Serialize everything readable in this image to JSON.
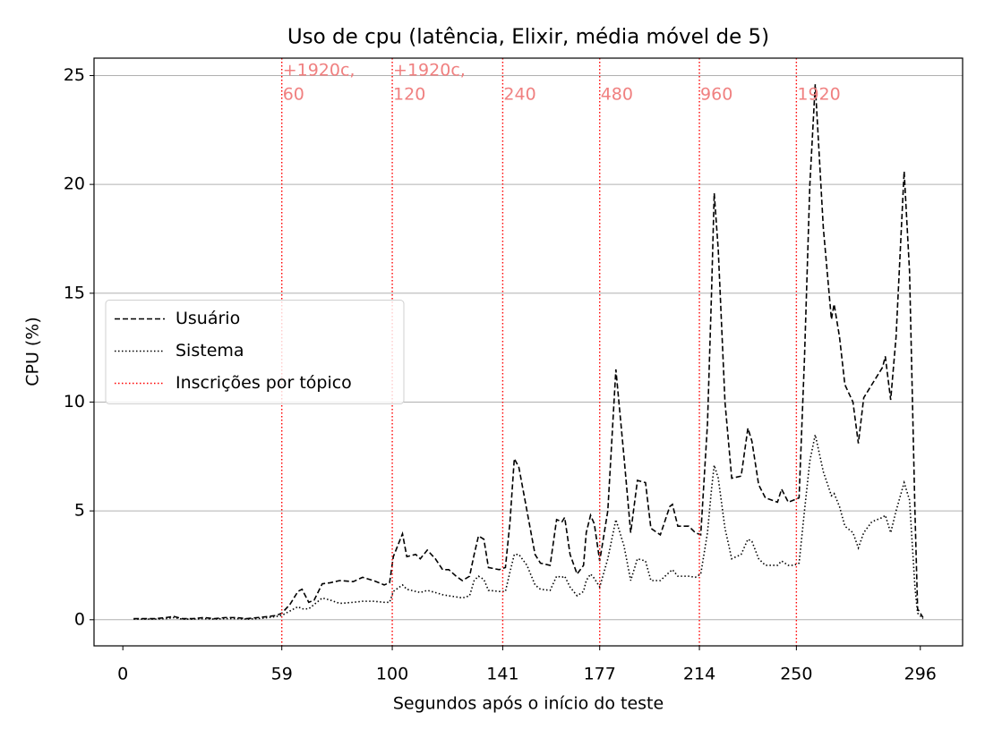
{
  "chart_data": {
    "type": "line",
    "title": "Uso de cpu (latência, Elixir, média móvel de 5)",
    "xlabel": "Segundos após o início do teste",
    "ylabel": "CPU (%)",
    "x": [
      4,
      8,
      12,
      16,
      19,
      22,
      26,
      30,
      34,
      38,
      42,
      46,
      50,
      54,
      57,
      59,
      62,
      65,
      66.5,
      69,
      71,
      74,
      77,
      80.5,
      85.5,
      89,
      93,
      97,
      99,
      100.4,
      103.8,
      105.4,
      108.7,
      110.4,
      113,
      116,
      118.7,
      121,
      123.7,
      126,
      128.7,
      130.4,
      132,
      134,
      135.7,
      139.7,
      142,
      143.7,
      145.3,
      147,
      150,
      153,
      155,
      158.6,
      161,
      163,
      164,
      166,
      168.6,
      171,
      172,
      173.6,
      175,
      177,
      180,
      183,
      186,
      188.5,
      191,
      194,
      196,
      199.5,
      203,
      204,
      206,
      210,
      212.5,
      214.5,
      217,
      218.5,
      219.5,
      221,
      223.5,
      226,
      229.5,
      232,
      233.5,
      236,
      238.5,
      243,
      244.5,
      247,
      249,
      251,
      253,
      255,
      257,
      260,
      263,
      264,
      266,
      268,
      271,
      273,
      275,
      278,
      282,
      283,
      285,
      287,
      290,
      292,
      294,
      295,
      297
    ],
    "series": [
      {
        "name": "Usuário",
        "color": "#000000",
        "linestyle": "dashed",
        "values": [
          0.05,
          0.05,
          0.05,
          0.1,
          0.15,
          0.05,
          0.05,
          0.1,
          0.05,
          0.1,
          0.1,
          0.05,
          0.1,
          0.15,
          0.2,
          0.3,
          0.7,
          1.3,
          1.4,
          0.8,
          0.9,
          1.65,
          1.7,
          1.8,
          1.75,
          1.95,
          1.8,
          1.6,
          1.7,
          2.9,
          3.95,
          2.9,
          3.0,
          2.8,
          3.2,
          2.8,
          2.3,
          2.3,
          2.0,
          1.8,
          2.0,
          3.0,
          3.85,
          3.7,
          2.4,
          2.3,
          2.4,
          4.5,
          7.4,
          7.0,
          5.0,
          3.0,
          2.6,
          2.5,
          4.6,
          4.5,
          4.7,
          3.0,
          2.1,
          2.5,
          4.0,
          4.8,
          4.4,
          2.7,
          5.0,
          11.5,
          7.5,
          4.0,
          6.4,
          6.3,
          4.2,
          3.9,
          5.2,
          5.3,
          4.3,
          4.3,
          4.0,
          3.9,
          9.0,
          15.0,
          19.6,
          17.0,
          10.0,
          6.5,
          6.6,
          8.8,
          8.2,
          6.2,
          5.6,
          5.4,
          6.0,
          5.4,
          5.5,
          5.6,
          12.0,
          20.0,
          24.6,
          18.0,
          13.8,
          14.5,
          13.0,
          10.8,
          10.0,
          8.1,
          10.2,
          10.8,
          11.6,
          12.1,
          10.1,
          13.0,
          20.6,
          16.0,
          5.0,
          0.5,
          0.1
        ]
      },
      {
        "name": "Sistema",
        "color": "#000000",
        "linestyle": "dotted",
        "values": [
          0.03,
          0.03,
          0.03,
          0.05,
          0.1,
          0.03,
          0.03,
          0.05,
          0.03,
          0.05,
          0.05,
          0.03,
          0.05,
          0.1,
          0.15,
          0.2,
          0.4,
          0.6,
          0.5,
          0.5,
          0.7,
          1.0,
          0.9,
          0.75,
          0.8,
          0.85,
          0.85,
          0.8,
          0.8,
          1.3,
          1.6,
          1.4,
          1.3,
          1.25,
          1.35,
          1.25,
          1.15,
          1.1,
          1.05,
          1.0,
          1.1,
          1.8,
          2.0,
          1.85,
          1.35,
          1.3,
          1.3,
          2.2,
          3.0,
          3.0,
          2.5,
          1.6,
          1.4,
          1.35,
          2.0,
          1.95,
          2.0,
          1.5,
          1.1,
          1.3,
          1.8,
          2.1,
          1.9,
          1.5,
          2.8,
          4.6,
          3.4,
          1.8,
          2.8,
          2.7,
          1.8,
          1.8,
          2.2,
          2.3,
          2.0,
          2.0,
          1.95,
          2.1,
          4.0,
          6.0,
          7.1,
          6.5,
          4.2,
          2.8,
          3.0,
          3.7,
          3.6,
          2.8,
          2.5,
          2.5,
          2.7,
          2.5,
          2.5,
          2.6,
          5.0,
          7.3,
          8.5,
          6.8,
          5.7,
          5.8,
          5.2,
          4.3,
          4.0,
          3.3,
          4.0,
          4.5,
          4.7,
          4.8,
          4.0,
          5.0,
          6.3,
          5.5,
          1.5,
          0.3,
          0.05
        ]
      }
    ],
    "vlines": {
      "name": "Inscrições por tópico",
      "color": "#ff0000",
      "label_color": "#f08080",
      "linestyle": "dotted",
      "lines": [
        {
          "x": 59,
          "label": [
            "+1920c,",
            "60"
          ]
        },
        {
          "x": 100,
          "label": [
            "+1920c,",
            "120"
          ]
        },
        {
          "x": 141,
          "label": [
            "240"
          ]
        },
        {
          "x": 177,
          "label": [
            "480"
          ]
        },
        {
          "x": 214,
          "label": [
            "960"
          ]
        },
        {
          "x": 250,
          "label": [
            "1920"
          ]
        }
      ]
    },
    "xlim": [
      -10.7,
      311.7
    ],
    "ylim": [
      -1.2,
      25.8
    ],
    "xticks": [
      0,
      59,
      100,
      141,
      177,
      214,
      250,
      296
    ],
    "yticks": [
      0,
      5,
      10,
      15,
      20,
      25
    ],
    "grid": "y",
    "legend": "center left"
  }
}
